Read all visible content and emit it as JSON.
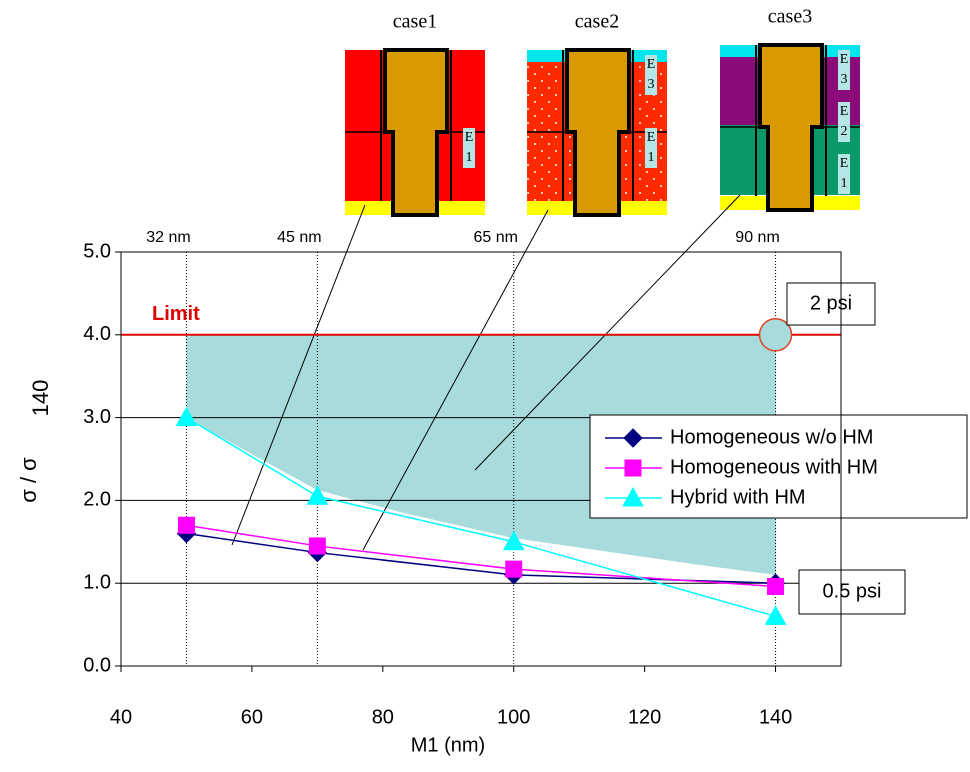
{
  "chart_data": {
    "type": "line",
    "x_label": "M1 (nm)",
    "y_label": [
      "σ / σ",
      "140"
    ],
    "xlim": [
      40,
      150
    ],
    "xticks": [
      40,
      60,
      80,
      100,
      120,
      140
    ],
    "ylim": [
      0,
      5
    ],
    "yticks": [
      {
        "value": 0,
        "label": "0.0"
      },
      {
        "value": 1,
        "label": "1.0"
      },
      {
        "value": 2,
        "label": "2.0"
      },
      {
        "value": 3,
        "label": "3.0"
      },
      {
        "value": 4,
        "label": "4.0"
      },
      {
        "value": 5,
        "label": "5.0"
      }
    ],
    "series": [
      {
        "name": "Homogeneous w/o HM",
        "color": "#000080",
        "marker": "diamond",
        "x": [
          50,
          70,
          100,
          140
        ],
        "values": [
          1.6,
          1.37,
          1.1,
          1.0
        ]
      },
      {
        "name": "Homogeneous with HM",
        "color": "#ff00ff",
        "marker": "square",
        "x": [
          50,
          70,
          100,
          140
        ],
        "values": [
          1.7,
          1.45,
          1.17,
          0.96
        ]
      },
      {
        "name": "Hybrid with HM",
        "color": "#00ffff",
        "marker": "triangle",
        "x": [
          50,
          70,
          100,
          140
        ],
        "values": [
          3.0,
          2.05,
          1.5,
          0.6
        ]
      }
    ],
    "nodes": [
      {
        "x": 50,
        "label": "32 nm"
      },
      {
        "x": 70,
        "label": "45 nm"
      },
      {
        "x": 100,
        "label": "65 nm"
      },
      {
        "x": 140,
        "label": "90 nm"
      }
    ],
    "limit": {
      "y": 4.0,
      "label": "Limit",
      "color": "#e00000"
    },
    "markers": [
      {
        "x": 140,
        "y": 4.0,
        "label": "2 psi"
      },
      {
        "x": 140,
        "y": 1.0,
        "label": "0.5 psi"
      }
    ],
    "cases": [
      {
        "label": "case1",
        "layers": [
          "E1"
        ]
      },
      {
        "label": "case2",
        "layers": [
          "E3",
          "E1"
        ]
      },
      {
        "label": "case3",
        "layers": [
          "E3",
          "E2",
          "E1"
        ]
      }
    ]
  }
}
